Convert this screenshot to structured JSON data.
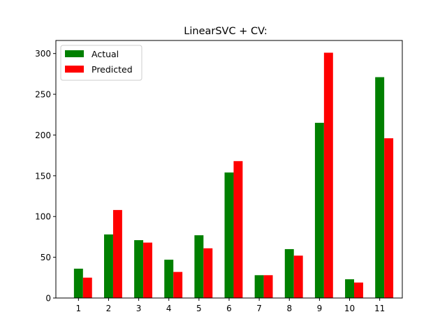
{
  "chart_data": {
    "type": "bar",
    "title": "LinearSVC + CV:",
    "xlabel": "",
    "ylabel": "",
    "categories": [
      "1",
      "2",
      "3",
      "4",
      "5",
      "6",
      "7",
      "8",
      "9",
      "10",
      "11"
    ],
    "series": [
      {
        "name": "Actual",
        "color": "#008000",
        "values": [
          36,
          78,
          71,
          47,
          77,
          154,
          28,
          60,
          215,
          23,
          271
        ]
      },
      {
        "name": "Predicted",
        "color": "#ff0000",
        "values": [
          25,
          108,
          68,
          32,
          61,
          168,
          28,
          52,
          301,
          19,
          196
        ]
      }
    ],
    "ylim": [
      0,
      316
    ],
    "yticks": [
      0,
      50,
      100,
      150,
      200,
      250,
      300
    ],
    "grid": false,
    "legend": "top-left"
  }
}
